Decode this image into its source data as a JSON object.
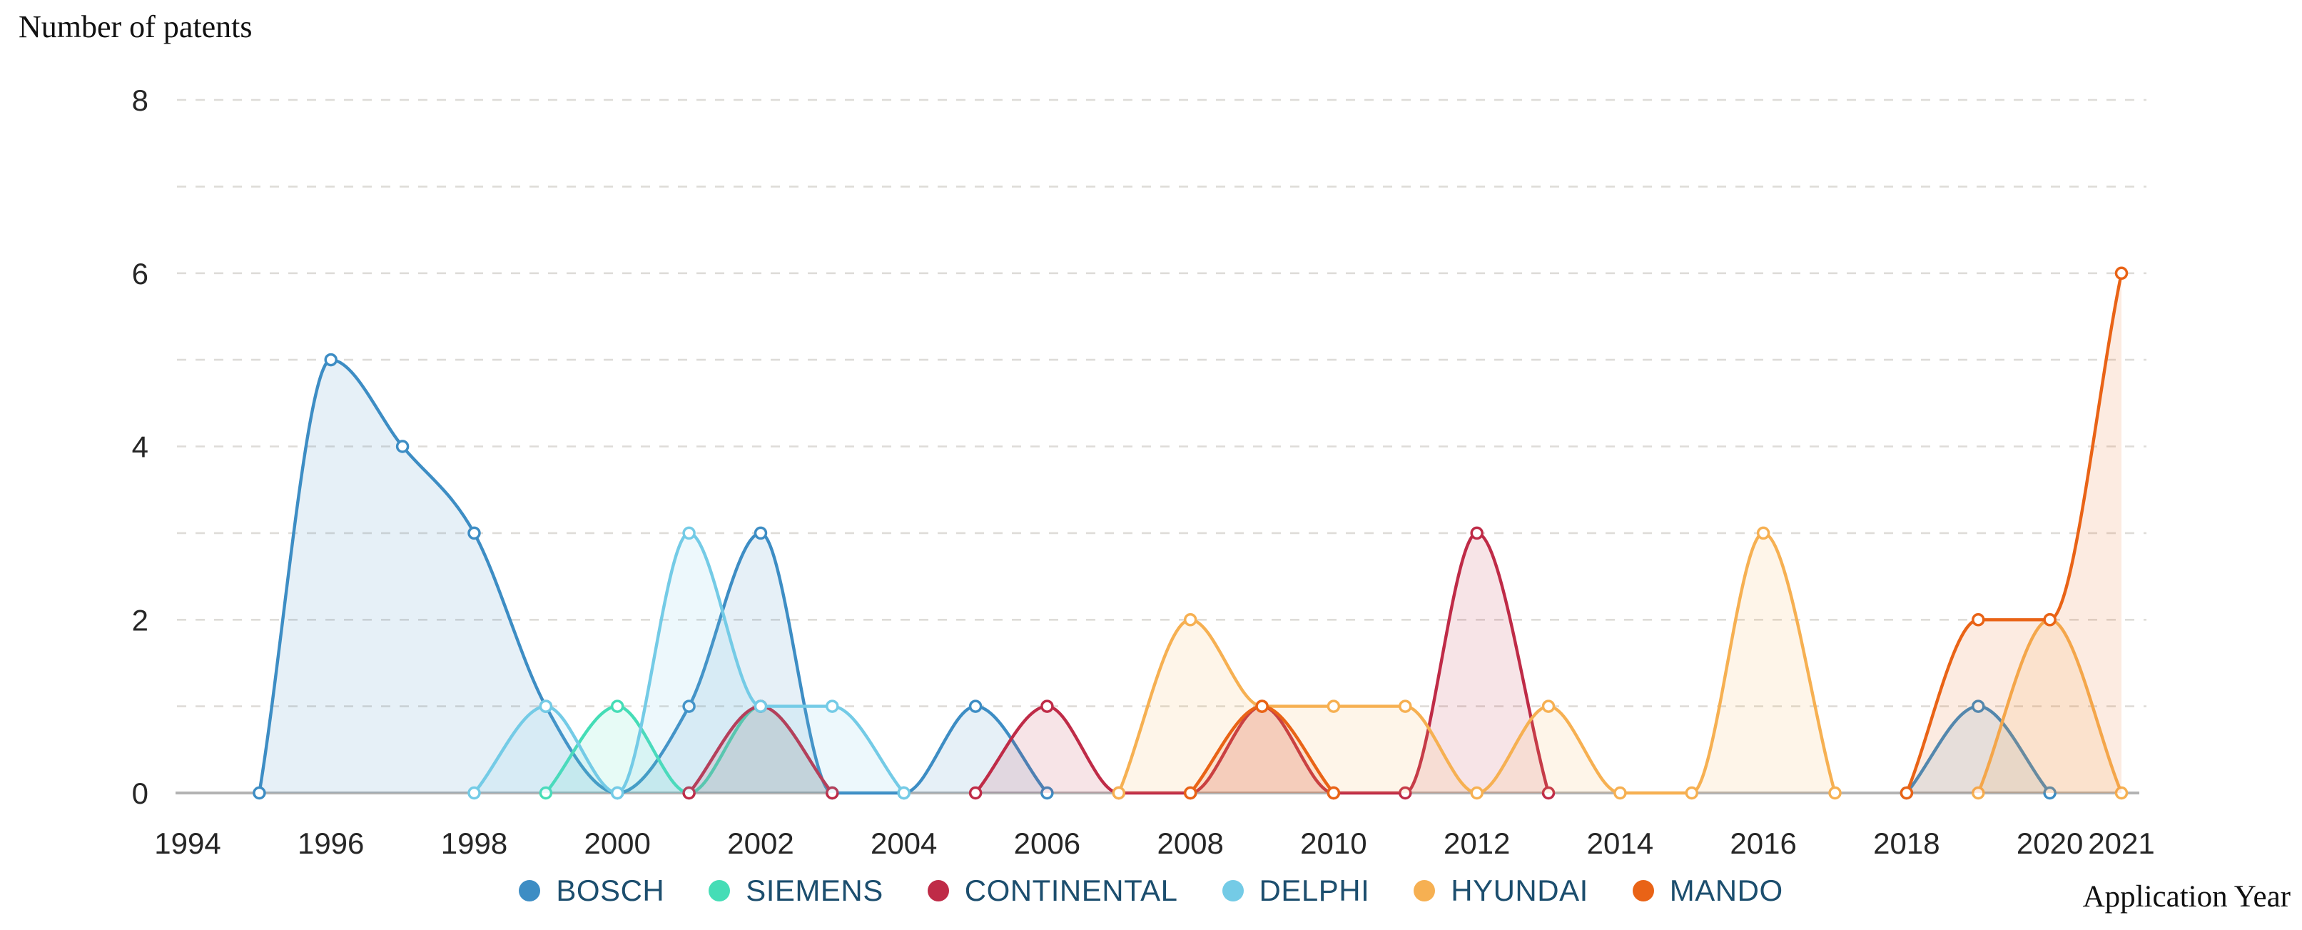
{
  "title": "Number of patents",
  "x_axis_label": "Application Year",
  "chart_data": {
    "type": "area",
    "title": "Number of patents",
    "xlabel": "Application Year",
    "ylabel": "Number of patents",
    "xlim": [
      1994,
      2021
    ],
    "ylim": [
      0,
      8
    ],
    "x_tick_labels": [
      "1994",
      "1996",
      "1998",
      "2000",
      "2002",
      "2004",
      "2006",
      "2008",
      "2010",
      "2012",
      "2014",
      "2016",
      "2018",
      "2020",
      "2021"
    ],
    "y_tick_labels": [
      "0",
      "2",
      "4",
      "6",
      "8"
    ],
    "grid": {
      "horizontal_lines_at": [
        1,
        2,
        3,
        4,
        5,
        6,
        7,
        8
      ],
      "style": "dashed"
    },
    "legend_position": "bottom-center",
    "point_markers": "open-circle",
    "series": [
      {
        "name": "BOSCH",
        "color": "#3d8dc4",
        "segments": [
          [
            [
              1995,
              0
            ],
            [
              1996,
              5
            ],
            [
              1997,
              4
            ],
            [
              1998,
              3
            ],
            [
              1999,
              1
            ],
            [
              2000,
              0
            ],
            [
              2001,
              1
            ],
            [
              2002,
              3
            ],
            [
              2003,
              0
            ],
            [
              2004,
              0
            ],
            [
              2005,
              1
            ],
            [
              2006,
              0
            ]
          ],
          [
            [
              2018,
              0
            ],
            [
              2019,
              1
            ],
            [
              2020,
              0
            ]
          ]
        ]
      },
      {
        "name": "SIEMENS",
        "color": "#45ddb6",
        "segments": [
          [
            [
              1999,
              0
            ],
            [
              2000,
              1
            ],
            [
              2001,
              0
            ],
            [
              2002,
              1
            ],
            [
              2003,
              0
            ]
          ]
        ]
      },
      {
        "name": "CONTINENTAL",
        "color": "#bf2b47",
        "segments": [
          [
            [
              2001,
              0
            ],
            [
              2002,
              1
            ],
            [
              2003,
              0
            ]
          ],
          [
            [
              2005,
              0
            ],
            [
              2006,
              1
            ],
            [
              2007,
              0
            ],
            [
              2008,
              0
            ],
            [
              2009,
              1
            ],
            [
              2010,
              0
            ],
            [
              2011,
              0
            ],
            [
              2012,
              3
            ],
            [
              2013,
              0
            ]
          ]
        ]
      },
      {
        "name": "DELPHI",
        "color": "#74cbe6",
        "segments": [
          [
            [
              1998,
              0
            ],
            [
              1999,
              1
            ],
            [
              2000,
              0
            ],
            [
              2001,
              3
            ],
            [
              2002,
              1
            ],
            [
              2003,
              1
            ],
            [
              2004,
              0
            ]
          ]
        ]
      },
      {
        "name": "HYUNDAI",
        "color": "#f6b052",
        "segments": [
          [
            [
              2007,
              0
            ],
            [
              2008,
              2
            ],
            [
              2009,
              1
            ],
            [
              2010,
              1
            ],
            [
              2011,
              1
            ],
            [
              2012,
              0
            ],
            [
              2013,
              1
            ],
            [
              2014,
              0
            ],
            [
              2015,
              0
            ],
            [
              2016,
              3
            ],
            [
              2017,
              0
            ]
          ],
          [
            [
              2019,
              0
            ],
            [
              2020,
              2
            ],
            [
              2021,
              0
            ]
          ]
        ]
      },
      {
        "name": "MANDO",
        "color": "#e96316",
        "segments": [
          [
            [
              2008,
              0
            ],
            [
              2009,
              1
            ],
            [
              2010,
              0
            ]
          ],
          [
            [
              2018,
              0
            ],
            [
              2019,
              2
            ],
            [
              2020,
              2
            ],
            [
              2021,
              6
            ]
          ]
        ]
      }
    ],
    "colors": {
      "grid": "#dedcd8",
      "axis_line": "#b3b3b3",
      "tick_text": "#262626",
      "legend_text": "#1c4e6e",
      "marker_fill": "#ffffff"
    },
    "fill_opacity": 0.13
  }
}
